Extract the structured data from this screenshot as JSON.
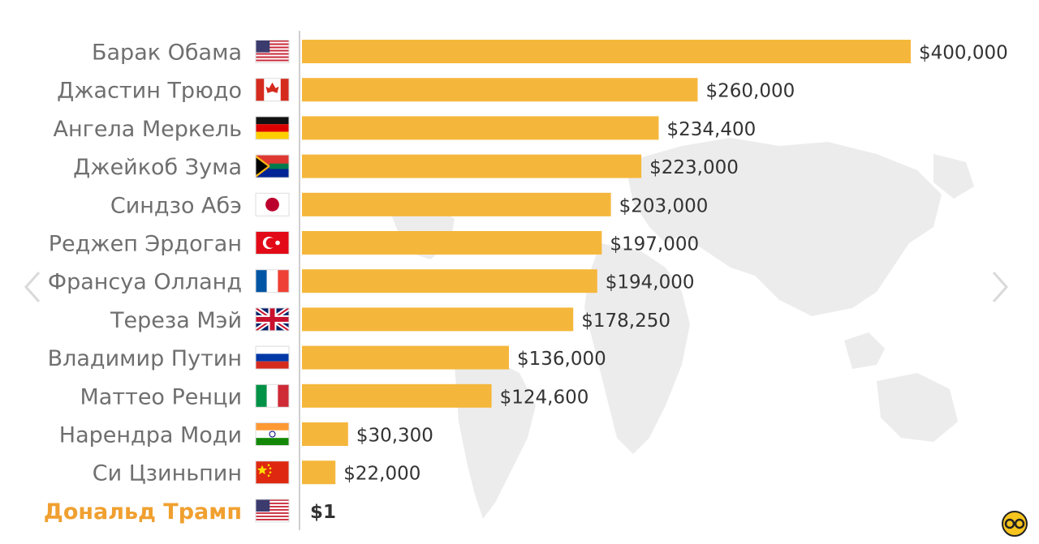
{
  "chart_data": {
    "type": "bar",
    "orientation": "horizontal",
    "categories": [
      "Барак Обама",
      "Джастин Трюдо",
      "Ангела Меркель",
      "Джейкоб Зума",
      "Синдзо Абэ",
      "Реджеп Эрдоган",
      "Франсуа Олланд",
      "Тереза Мэй",
      "Владимир Путин",
      "Маттео Ренци",
      "Нарендра Моди",
      "Си Цзиньпин",
      "Дональд Трамп"
    ],
    "values": [
      400000,
      260000,
      234400,
      223000,
      203000,
      197000,
      194000,
      178250,
      136000,
      124600,
      30300,
      22000,
      1
    ],
    "value_labels": [
      "$400,000",
      "$260,000",
      "$234,400",
      "$223,000",
      "$203,000",
      "$197,000",
      "$194,000",
      "$178,250",
      "$136,000",
      "$124,600",
      "$30,300",
      "$22,000",
      "$1"
    ],
    "flags": [
      "usa-flag-icon",
      "canada-flag-icon",
      "germany-flag-icon",
      "south-africa-flag-icon",
      "japan-flag-icon",
      "turkey-flag-icon",
      "france-flag-icon",
      "uk-flag-icon",
      "russia-flag-icon",
      "italy-flag-icon",
      "india-flag-icon",
      "china-flag-icon",
      "usa-flag-icon"
    ],
    "highlight_index": 12,
    "xlim": [
      0,
      400000
    ],
    "grid": false,
    "legend": "none",
    "colors": {
      "bar": "#f5b73b",
      "label": "#6f6f6f",
      "highlight": "#f0a030",
      "value": "#333333",
      "axis": "#cfcfcf",
      "map": "#ececec"
    }
  },
  "ui": {
    "prev_icon": "chevron-left-icon",
    "next_icon": "chevron-right-icon",
    "logo_icon": "channel-logo-icon"
  }
}
